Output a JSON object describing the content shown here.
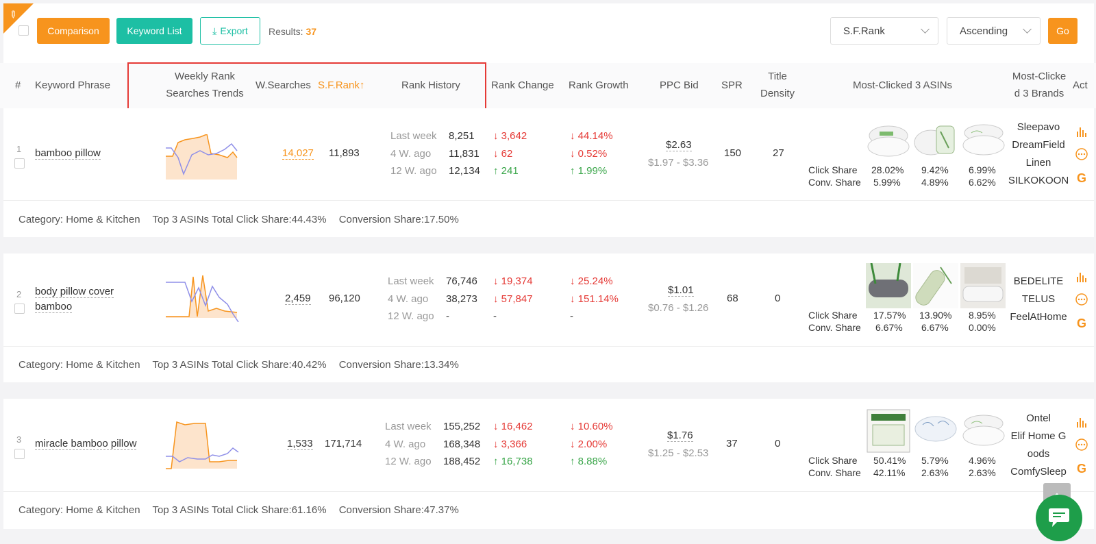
{
  "toolbar": {
    "comparison_label": "Comparison",
    "keyword_list_label": "Keyword List",
    "export_label": "Export",
    "results_label": "Results:",
    "results_count": "37",
    "sort_select": "S.F.Rank",
    "order_select": "Ascending",
    "go_label": "Go"
  },
  "headers": {
    "num": "#",
    "keyword": "Keyword Phrase",
    "trends_1": "Weekly Rank",
    "trends_2": "Searches Trends",
    "wsearches": "W.Searches",
    "sfrank": "S.F.Rank",
    "sfrank_arrow": "↑",
    "history": "Rank History",
    "change": "Rank Change",
    "growth": "Rank Growth",
    "ppc": "PPC Bid",
    "spr": "SPR",
    "density_1": "Title",
    "density_2": "Density",
    "asins": "Most-Clicked 3 ASINs",
    "brands_1": "Most-Clicke",
    "brands_2": "d 3 Brands",
    "act": "Act"
  },
  "rows": [
    {
      "index": "1",
      "keyword": "bamboo pillow",
      "wsearches": "14,027",
      "sfrank": "11,893",
      "history": [
        {
          "label": "Last week",
          "value": "8,251",
          "change": "↓ 3,642",
          "growth": "↓ 44.14%"
        },
        {
          "label": "4 W. ago",
          "value": "11,831",
          "change": "↓ 62",
          "growth": "↓ 0.52%"
        },
        {
          "label": "12 W. ago",
          "value": "12,134",
          "change": "↑ 241",
          "growth": "↑ 1.99%"
        }
      ],
      "ppc": "$2.63",
      "ppc_range": "$1.97 - $3.36",
      "spr": "150",
      "density": "27",
      "click_share": [
        "28.02%",
        "9.42%",
        "6.99%"
      ],
      "conv_share": [
        "5.99%",
        "4.89%",
        "6.62%"
      ],
      "brands": [
        "Sleepavo",
        "DreamField",
        "Linen",
        "SILKOKOON"
      ],
      "footer": {
        "category": "Category: Home & Kitchen",
        "click": "Top 3 ASINs Total Click Share:44.43%",
        "conv": "Conversion Share:17.50%"
      }
    },
    {
      "index": "2",
      "keyword_1": "body pillow cover",
      "keyword_2": "bamboo",
      "wsearches": "2,459",
      "sfrank": "96,120",
      "history": [
        {
          "label": "Last week",
          "value": "76,746",
          "change": "↓ 19,374",
          "growth": "↓ 25.24%"
        },
        {
          "label": "4 W. ago",
          "value": "38,273",
          "change": "↓ 57,847",
          "growth": "↓ 151.14%"
        },
        {
          "label": "12 W. ago",
          "value": "-",
          "change": "-",
          "growth": "-"
        }
      ],
      "ppc": "$1.01",
      "ppc_range": "$0.76 - $1.26",
      "spr": "68",
      "density": "0",
      "click_share": [
        "17.57%",
        "13.90%",
        "8.95%"
      ],
      "conv_share": [
        "6.67%",
        "6.67%",
        "0.00%"
      ],
      "brands": [
        "BEDELITE",
        "TELUS",
        "FeelAtHome"
      ],
      "footer": {
        "category": "Category: Home & Kitchen",
        "click": "Top 3 ASINs Total Click Share:40.42%",
        "conv": "Conversion Share:13.34%"
      }
    },
    {
      "index": "3",
      "keyword": "miracle bamboo pillow",
      "wsearches": "1,533",
      "sfrank": "171,714",
      "history": [
        {
          "label": "Last week",
          "value": "155,252",
          "change": "↓ 16,462",
          "growth": "↓ 10.60%"
        },
        {
          "label": "4 W. ago",
          "value": "168,348",
          "change": "↓ 3,366",
          "growth": "↓ 2.00%"
        },
        {
          "label": "12 W. ago",
          "value": "188,452",
          "change": "↑ 16,738",
          "growth": "↑ 8.88%"
        }
      ],
      "ppc": "$1.76",
      "ppc_range": "$1.25 - $2.53",
      "spr": "37",
      "density": "0",
      "click_share": [
        "50.41%",
        "5.79%",
        "4.96%"
      ],
      "conv_share": [
        "42.11%",
        "2.63%",
        "2.63%"
      ],
      "brands": [
        "Ontel",
        "Elif Home G",
        "oods",
        "ComfySleep"
      ],
      "footer": {
        "category": "Category: Home & Kitchen",
        "click": "Top 3 ASINs Total Click Share:61.16%",
        "conv": "Conversion Share:47.37%"
      }
    }
  ],
  "share_labels": {
    "click": "Click Share",
    "conv": "Conv. Share"
  },
  "colors": {
    "orange": "#f7941d",
    "teal": "#1dbfa4",
    "red": "#e53935",
    "green": "#3aa64a",
    "rank_line": "#f7941d",
    "search_line": "#8f8fe8"
  }
}
